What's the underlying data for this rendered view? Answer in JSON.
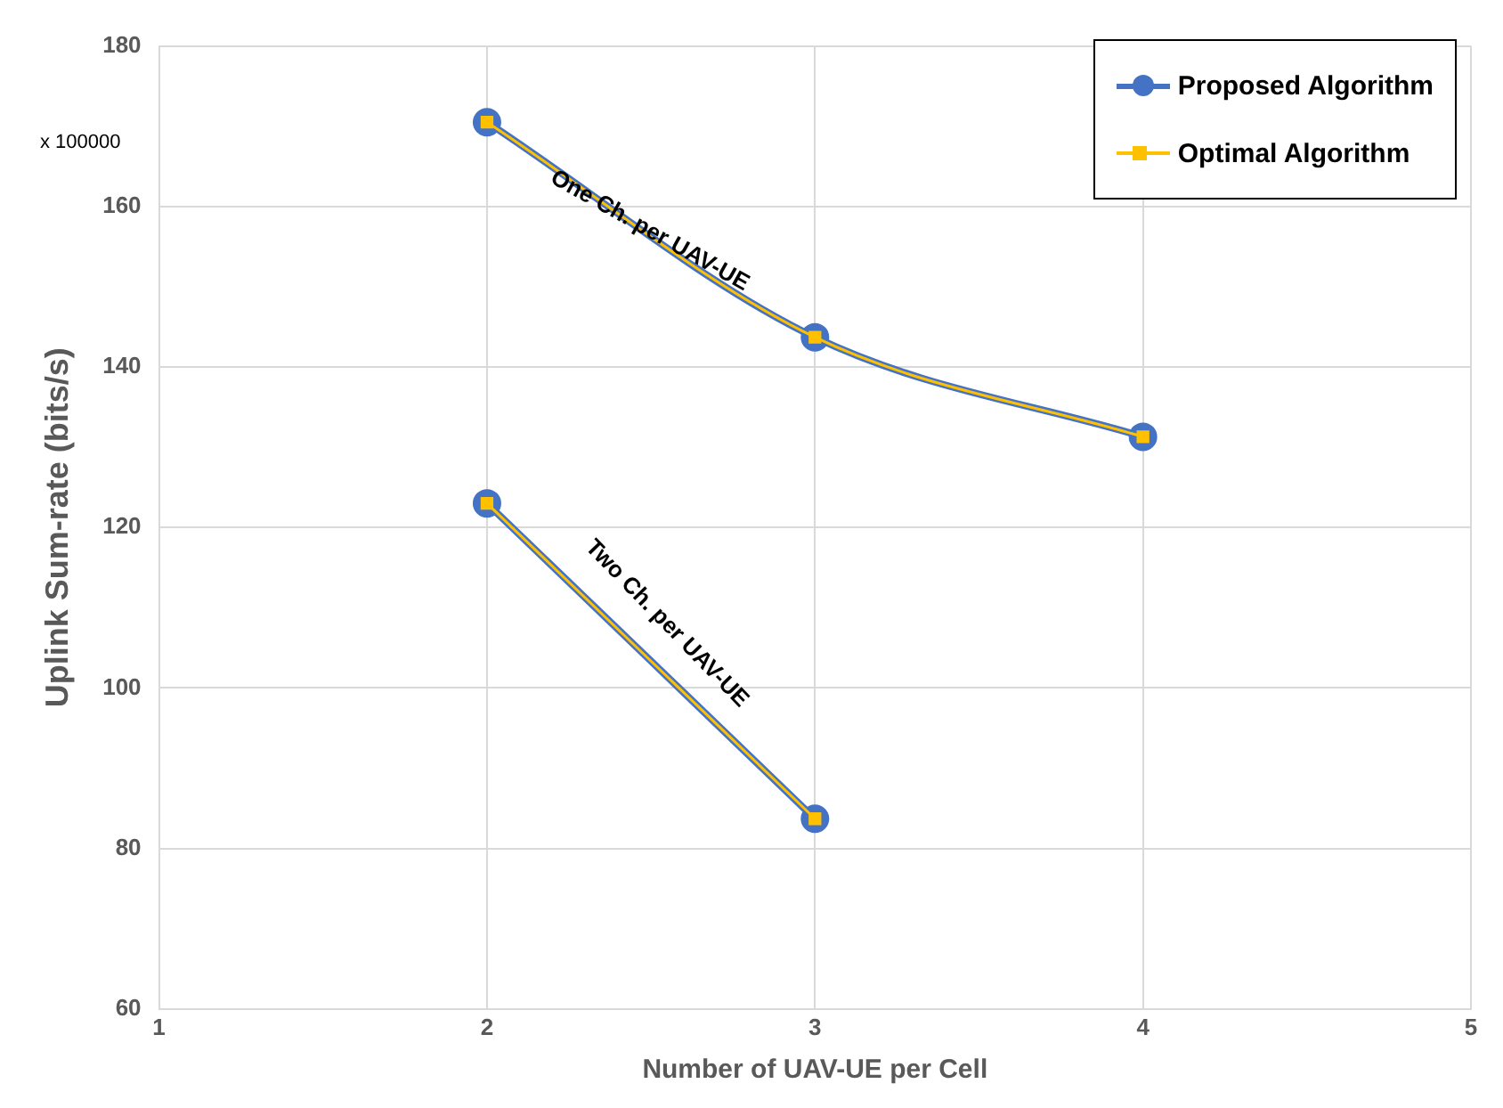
{
  "chart_data": {
    "type": "line",
    "xlabel": "Number of UAV-UE per Cell",
    "ylabel": "Uplink Sum-rate (bits/s)",
    "series": [
      {
        "name": "Proposed Algorithm",
        "color": "#4472c4",
        "marker": "circle",
        "x": [
          2,
          3,
          4
        ],
        "values": [
          170.5,
          143.7,
          131.3
        ]
      },
      {
        "color": "#4472c4",
        "marker": "circle",
        "x": [
          2,
          3
        ],
        "values": [
          123,
          83.7
        ]
      },
      {
        "name": "Optimal Algorithm",
        "color": "#ffc000",
        "marker": "square",
        "x": [
          2,
          3,
          4
        ],
        "values": [
          170.5,
          143.7,
          131.3
        ]
      },
      {
        "color": "#ffc000",
        "marker": "square",
        "x": [
          2,
          3
        ],
        "values": [
          123,
          83.7
        ]
      }
    ],
    "xlim": [
      1,
      5
    ],
    "xticks": [
      1,
      2,
      3,
      4,
      5
    ],
    "ylim": [
      60,
      180
    ],
    "yticks": [
      60,
      80,
      100,
      120,
      140,
      160,
      180
    ],
    "grid": true,
    "legend": "top right",
    "annotations": [
      "x 100000",
      "One Ch. per UAV-UE",
      "Two Ch. per UAV-UE"
    ]
  }
}
